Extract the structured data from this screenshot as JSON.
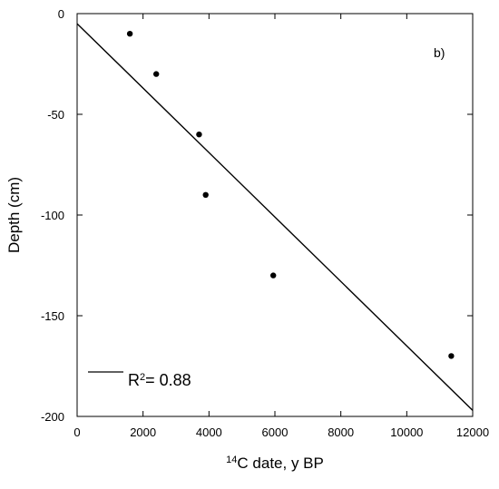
{
  "chart_data": {
    "type": "scatter",
    "panel_label": "b)",
    "xlabel": {
      "superscript": "14",
      "text": "C date, y BP"
    },
    "ylabel": "Depth (cm)",
    "xlim": [
      0,
      12000
    ],
    "ylim": [
      -200,
      0
    ],
    "x_ticks": [
      0,
      2000,
      4000,
      6000,
      8000,
      10000,
      12000
    ],
    "y_ticks": [
      0,
      -50,
      -100,
      -150,
      -200
    ],
    "grid": false,
    "points": [
      {
        "x": 1600,
        "y": -10
      },
      {
        "x": 2400,
        "y": -30
      },
      {
        "x": 3700,
        "y": -60
      },
      {
        "x": 3900,
        "y": -90
      },
      {
        "x": 5950,
        "y": -130
      },
      {
        "x": 11350,
        "y": -170
      }
    ],
    "fit_line": {
      "x": [
        0,
        12000
      ],
      "y": [
        -5,
        -197
      ]
    },
    "legend": {
      "placement": "bottom-left",
      "label_prefix": "R",
      "label_superscript": "2",
      "label_suffix": "= 0.88"
    }
  }
}
